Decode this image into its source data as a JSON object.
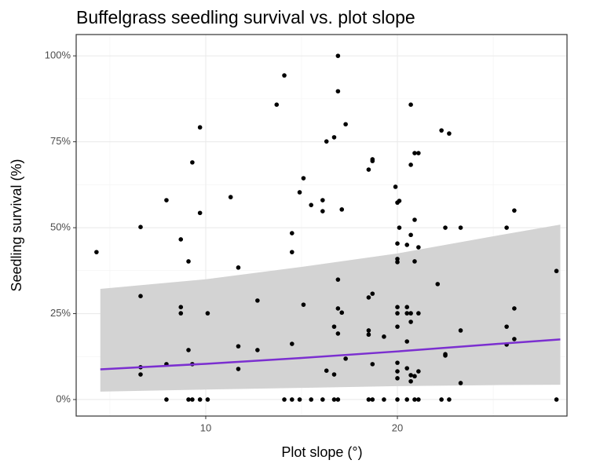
{
  "chart_data": {
    "type": "scatter",
    "title": "Buffelgrass seedling survival vs. plot slope",
    "x_label": "Plot slope (°)",
    "y_label": "Seedling survival (%)",
    "xlim": [
      3.24,
      28.85
    ],
    "ylim": [
      -4.8,
      106.2
    ],
    "xticks": [
      10,
      20
    ],
    "yticks": [
      {
        "value": 0,
        "label": "0%"
      },
      {
        "value": 25,
        "label": "25%"
      },
      {
        "value": 50,
        "label": "50%"
      },
      {
        "value": 75,
        "label": "75%"
      },
      {
        "value": 100,
        "label": "100%"
      }
    ],
    "x_minor_ticks": [
      5,
      15,
      25
    ],
    "y_minor_ticks": [
      12.5,
      37.5,
      62.5,
      87.5
    ],
    "grid": true,
    "series": [
      {
        "color": "#000000",
        "x": [
          4.3,
          6.6,
          6.6,
          6.6,
          6.6,
          7.95,
          7.95,
          7.95,
          8.7,
          8.7,
          8.7,
          9.1,
          9.1,
          9.3,
          9.3,
          9.1,
          9.3,
          9.7,
          9.7,
          9.7,
          10.1,
          10.1,
          11.3,
          11.7,
          11.7,
          11.7,
          12.7,
          12.7,
          13.7,
          14.1,
          14.1,
          14.5,
          14.5,
          14.5,
          14.5,
          14.9,
          15.1,
          15.1,
          14.9,
          15.5,
          15.5,
          16.1,
          16.1,
          16.3,
          16.3,
          16.1,
          16.7,
          16.7,
          16.7,
          16.9,
          16.9,
          16.9,
          16.9,
          16.9,
          16.9,
          16.7,
          17.1,
          17.1,
          17.3,
          17.3,
          18.5,
          18.5,
          18.5,
          18.5,
          18.7,
          18.7,
          18.7,
          18.7,
          18.5,
          18.7,
          19.3,
          19.3,
          19.9,
          20.0,
          20.1,
          20.0,
          20.0,
          20.0,
          20.0,
          20.0,
          20.0,
          20.0,
          20.0,
          20.0,
          20.0,
          20.1,
          20.5,
          20.5,
          20.5,
          20.5,
          20.5,
          20.5,
          20.7,
          20.7,
          20.7,
          20.7,
          20.7,
          20.7,
          20.7,
          20.9,
          20.9,
          20.9,
          20.9,
          20.9,
          21.1,
          21.1,
          21.1,
          21.1,
          21.1,
          22.1,
          22.3,
          22.5,
          22.5,
          22.5,
          22.3,
          22.7,
          22.7,
          23.3,
          23.3,
          23.3,
          25.7,
          25.7,
          25.7,
          26.1,
          26.1,
          26.1,
          28.3,
          28.3
        ],
        "values": [
          42.9,
          50.2,
          30.1,
          9.4,
          7.3,
          58,
          10.3,
          0,
          46.6,
          26.9,
          25.1,
          40.2,
          14.4,
          69,
          10.3,
          0,
          0,
          79.2,
          54.3,
          0,
          25.1,
          0,
          58.9,
          38.4,
          15.5,
          8.9,
          28.8,
          14.4,
          85.8,
          94.3,
          0,
          48.4,
          42.9,
          16.2,
          0,
          60.3,
          64.4,
          27.6,
          0,
          56.6,
          0,
          58,
          54.8,
          75.1,
          8.4,
          0,
          76.3,
          21.2,
          7.3,
          100,
          89.7,
          34.9,
          26.5,
          19.2,
          0,
          0,
          55.3,
          25.3,
          80.1,
          11.9,
          66.9,
          29.7,
          20.1,
          18.9,
          69.9,
          69.4,
          30.8,
          10.3,
          0,
          0,
          18.3,
          0,
          61.9,
          57.3,
          57.8,
          45.4,
          40.9,
          40,
          26.9,
          25.1,
          21.2,
          10.7,
          8.2,
          6.2,
          0,
          50,
          45,
          26.9,
          25.1,
          16.9,
          9.1,
          0,
          85.8,
          68.3,
          47.9,
          25.1,
          22.6,
          7.1,
          5.3,
          71.7,
          52.3,
          40.2,
          6.8,
          0,
          71.7,
          44.3,
          25.1,
          8.2,
          0,
          33.6,
          78.3,
          50,
          13.2,
          12.8,
          0,
          0,
          77.4,
          50,
          20.1,
          4.8,
          50,
          21.2,
          16,
          55,
          26.5,
          17.6,
          37.4,
          0
        ]
      }
    ],
    "fit": {
      "color": "#7b2fd0",
      "band_color": "#d3d3d3",
      "x": [
        4.5,
        10,
        15,
        20,
        25,
        28.5
      ],
      "values": [
        8.8,
        10.4,
        12.1,
        14.0,
        16.1,
        17.5
      ],
      "lower": [
        2.3,
        2.9,
        3.4,
        3.9,
        4.2,
        4.3
      ],
      "upper": [
        32.2,
        35,
        38.6,
        42.5,
        47.5,
        50.9
      ]
    }
  }
}
